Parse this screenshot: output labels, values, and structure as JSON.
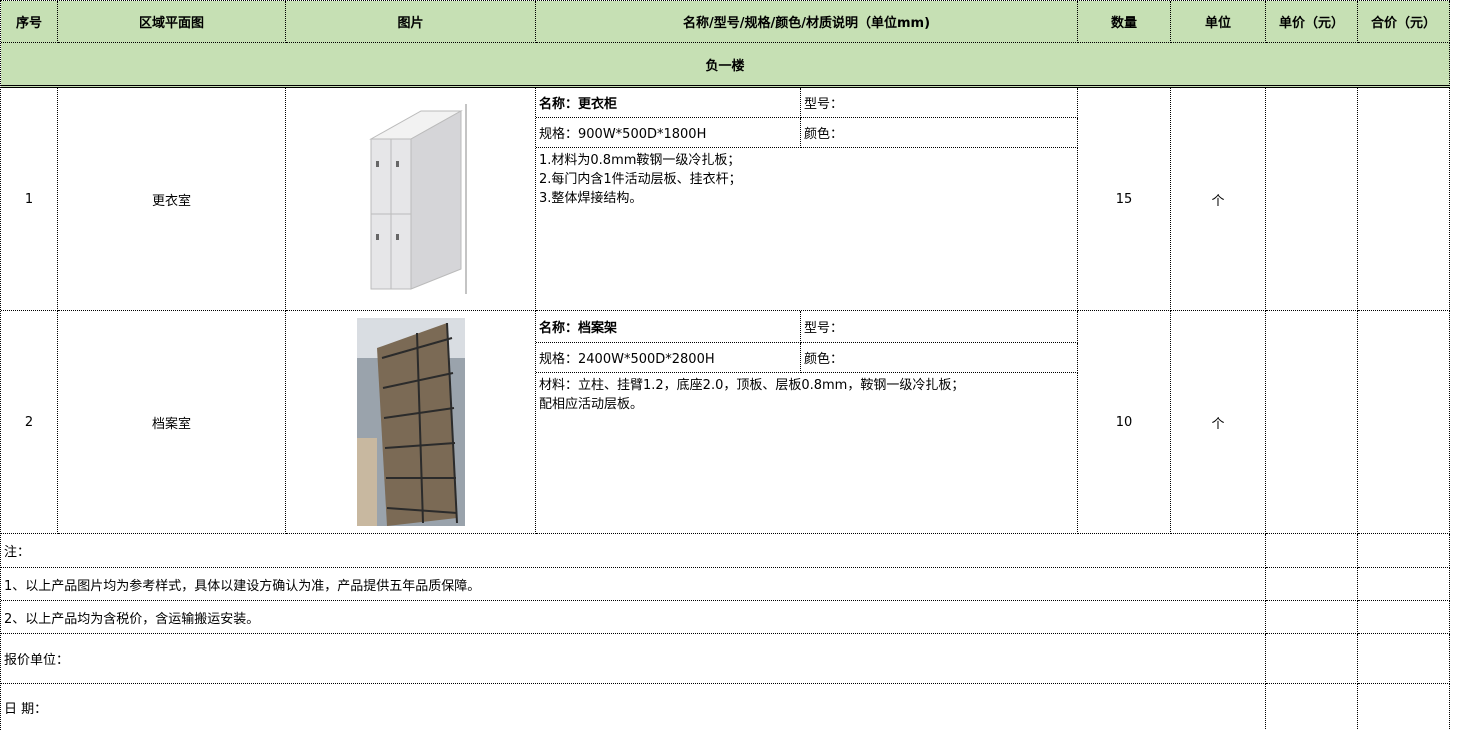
{
  "table": {
    "headers": [
      "序号",
      "区域平面图",
      "图片",
      "名称/型号/规格/颜色/材质说明（单位mm)",
      "数量",
      "单位",
      "单价（元）",
      "合价（元）"
    ],
    "floor": "负一楼",
    "rows": [
      {
        "no": 1,
        "area": "更衣室",
        "name": "名称：更衣柜",
        "model": "型号：",
        "spec": "规格：900W*500D*1800H",
        "color": "颜色：",
        "desc": [
          "1.材料为0.8mm鞍钢一级冷扎板；",
          "2.每门内含1件活动层板、挂衣杆；",
          "3.整体焊接结构。"
        ],
        "qty": 15,
        "unit": "个"
      },
      {
        "no": 2,
        "area": "档案室",
        "name": "名称：档案架",
        "model": "型号：",
        "spec": "规格：2400W*500D*2800H",
        "color": "颜色：",
        "desc": [
          "材料：立柱、挂臂1.2，底座2.0，顶板、层板0.8mm，鞍钢一级冷扎板；",
          "配相应活动层板。"
        ],
        "qty": 10,
        "unit": "个"
      }
    ]
  },
  "notes": [
    "注：",
    "1、以上产品图片均为参考样式，具体以建设方确认为准，产品提供五年品质保障。",
    "2、以上产品均为含税价，含运输搬运安装。"
  ],
  "footer": {
    "quoter": "报价单位：",
    "date": "日 期："
  }
}
